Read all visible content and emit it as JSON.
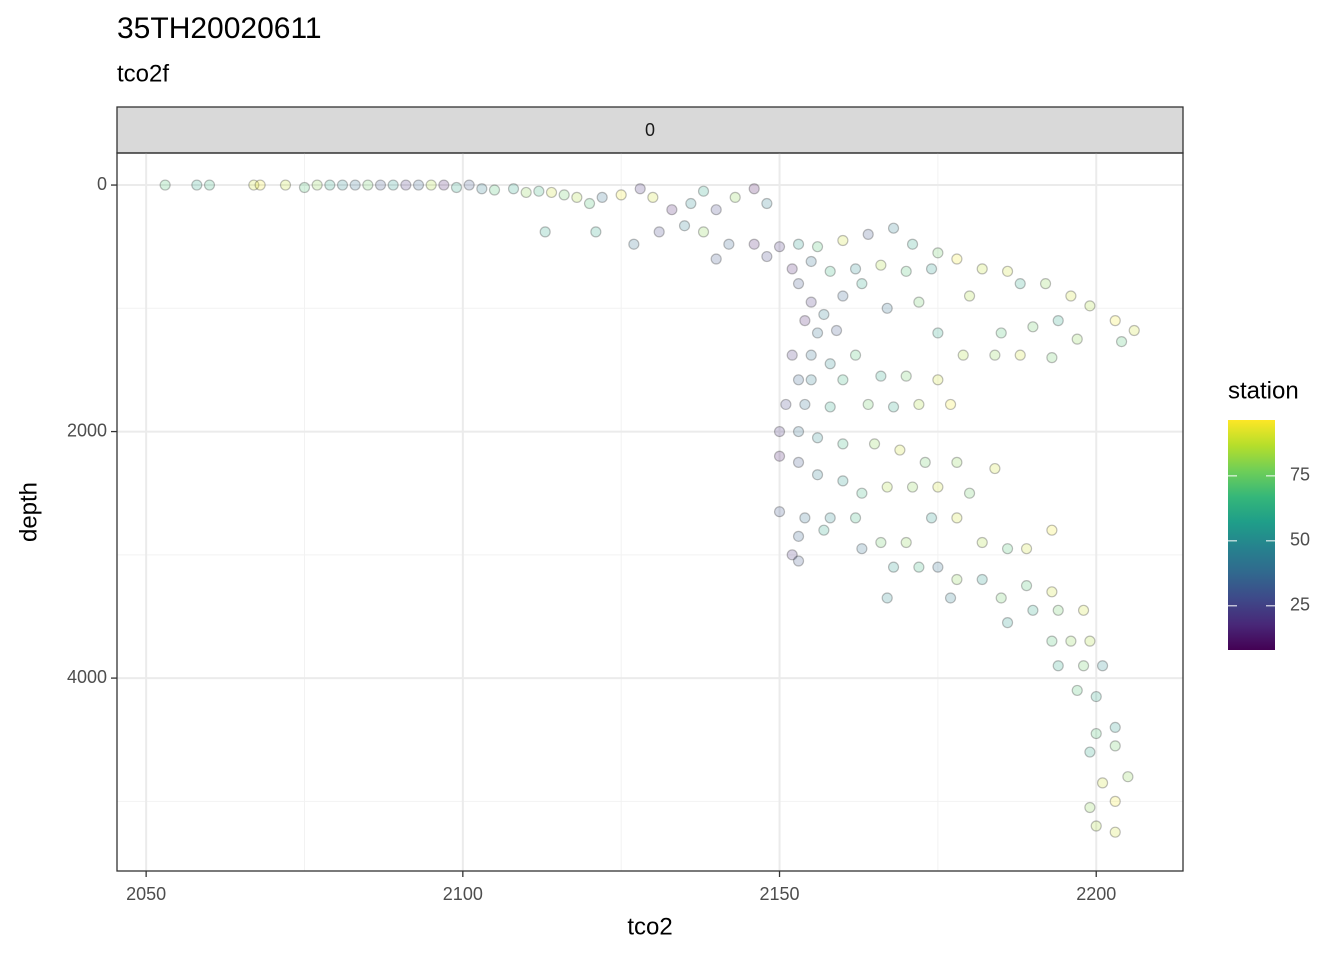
{
  "chart_data": {
    "type": "scatter",
    "title": "35TH20020611",
    "subtitle": "tco2f",
    "facet_label": "0",
    "x_label": "tco2",
    "y_label": "depth",
    "legend_title": "station",
    "y_reversed": true,
    "grid": true,
    "xlim": [
      2045.4,
      2213.7
    ],
    "ylim": [
      -260,
      5565
    ],
    "xticks": [
      2050,
      2100,
      2150,
      2200
    ],
    "yticks": [
      0,
      2000,
      4000
    ],
    "xminor": [
      2075,
      2125,
      2175
    ],
    "yminor": [
      1000,
      3000,
      5000
    ],
    "colorlim": [
      8,
      96.5
    ],
    "colorticks": [
      25,
      50,
      75
    ],
    "colorscale": [
      "#440154",
      "#482878",
      "#3e4989",
      "#31688e",
      "#26828e",
      "#1f9e89",
      "#35b779",
      "#6ece58",
      "#b5de2b",
      "#fde725"
    ],
    "x": [
      2053,
      2058,
      2060,
      2067,
      2068,
      2072,
      2075,
      2077,
      2079,
      2081,
      2083,
      2085,
      2087,
      2089,
      2091,
      2093,
      2095,
      2097,
      2099,
      2101,
      2103,
      2105,
      2108,
      2110,
      2112,
      2114,
      2116,
      2118,
      2120,
      2122,
      2125,
      2128,
      2130,
      2133,
      2136,
      2138,
      2140,
      2143,
      2146,
      2148,
      2113,
      2121,
      2127,
      2131,
      2135,
      2138,
      2142,
      2146,
      2150,
      2153,
      2156,
      2160,
      2164,
      2168,
      2171,
      2175,
      2140,
      2148,
      2152,
      2155,
      2158,
      2162,
      2166,
      2170,
      2174,
      2178,
      2182,
      2186,
      2188,
      2192,
      2196,
      2199,
      2203,
      2206,
      2204,
      2153,
      2155,
      2157,
      2160,
      2163,
      2167,
      2172,
      2175,
      2180,
      2185,
      2190,
      2194,
      2197,
      2154,
      2156,
      2159,
      2152,
      2155,
      2158,
      2162,
      2166,
      2170,
      2175,
      2179,
      2184,
      2188,
      2193,
      2153,
      2155,
      2160,
      2151,
      2154,
      2158,
      2164,
      2168,
      2172,
      2177,
      2150,
      2153,
      2156,
      2160,
      2165,
      2169,
      2173,
      2178,
      2150,
      2153,
      2156,
      2160,
      2163,
      2167,
      2171,
      2175,
      2180,
      2184,
      2150,
      2154,
      2158,
      2162,
      2166,
      2170,
      2174,
      2178,
      2182,
      2186,
      2189,
      2193,
      2153,
      2152,
      2153,
      2157,
      2163,
      2168,
      2172,
      2175,
      2178,
      2182,
      2185,
      2189,
      2193,
      2190,
      2194,
      2198,
      2186,
      2193,
      2196,
      2199,
      2194,
      2198,
      2201,
      2167,
      2177,
      2197,
      2200,
      2203,
      2200,
      2199,
      2203,
      2205,
      2201,
      2203,
      2200,
      2203,
      2199
    ],
    "values": [
      0,
      0,
      0,
      0,
      0,
      0,
      20,
      0,
      0,
      0,
      0,
      0,
      0,
      0,
      0,
      0,
      0,
      0,
      20,
      0,
      30,
      40,
      30,
      60,
      50,
      60,
      80,
      100,
      150,
      100,
      80,
      30,
      100,
      200,
      150,
      50,
      200,
      100,
      30,
      150,
      380,
      380,
      480,
      380,
      330,
      380,
      480,
      480,
      500,
      480,
      500,
      450,
      400,
      350,
      480,
      550,
      600,
      580,
      680,
      620,
      700,
      680,
      650,
      700,
      680,
      600,
      680,
      700,
      800,
      800,
      900,
      980,
      1100,
      1180,
      1270,
      800,
      950,
      1050,
      900,
      800,
      1000,
      950,
      1200,
      900,
      1200,
      1150,
      1100,
      1250,
      1100,
      1200,
      1180,
      1380,
      1380,
      1450,
      1380,
      1550,
      1550,
      1580,
      1380,
      1380,
      1380,
      1400,
      1580,
      1580,
      1580,
      1780,
      1780,
      1800,
      1780,
      1800,
      1780,
      1780,
      2000,
      2000,
      2050,
      2100,
      2100,
      2150,
      2250,
      2250,
      2200,
      2250,
      2350,
      2400,
      2500,
      2450,
      2450,
      2450,
      2500,
      2300,
      2650,
      2700,
      2700,
      2700,
      2900,
      2900,
      2700,
      2700,
      2900,
      2950,
      2950,
      2800,
      2850,
      3000,
      3050,
      2800,
      2950,
      3100,
      3100,
      3100,
      3200,
      3200,
      3350,
      3250,
      3300,
      3450,
      3450,
      3450,
      3550,
      3700,
      3700,
      3700,
      3900,
      3900,
      3900,
      3350,
      3350,
      4100,
      4150,
      4400,
      4450,
      4600,
      4550,
      4800,
      4850,
      5000,
      5200,
      5250,
      5050
    ],
    "station": [
      70,
      60,
      65,
      90,
      95,
      88,
      70,
      80,
      60,
      50,
      40,
      75,
      30,
      55,
      20,
      35,
      85,
      15,
      60,
      30,
      45,
      70,
      60,
      80,
      65,
      90,
      75,
      85,
      70,
      40,
      95,
      20,
      90,
      15,
      50,
      60,
      25,
      80,
      10,
      45,
      60,
      60,
      40,
      25,
      45,
      80,
      35,
      15,
      20,
      55,
      70,
      90,
      30,
      45,
      60,
      75,
      30,
      25,
      15,
      40,
      65,
      50,
      85,
      70,
      55,
      95,
      88,
      90,
      60,
      80,
      90,
      85,
      95,
      90,
      70,
      30,
      20,
      45,
      35,
      60,
      40,
      75,
      60,
      85,
      70,
      75,
      60,
      80,
      15,
      40,
      30,
      20,
      40,
      50,
      70,
      60,
      75,
      90,
      85,
      80,
      90,
      75,
      35,
      45,
      65,
      25,
      40,
      60,
      75,
      60,
      85,
      95,
      20,
      40,
      50,
      65,
      80,
      90,
      75,
      80,
      15,
      30,
      45,
      55,
      65,
      85,
      80,
      90,
      75,
      90,
      30,
      40,
      50,
      65,
      75,
      80,
      55,
      90,
      85,
      70,
      90,
      95,
      35,
      20,
      30,
      60,
      40,
      55,
      65,
      40,
      80,
      55,
      75,
      70,
      90,
      60,
      75,
      90,
      55,
      70,
      80,
      85,
      60,
      75,
      50,
      50,
      45,
      70,
      60,
      55,
      70,
      60,
      75,
      80,
      90,
      95,
      85,
      90,
      80
    ]
  }
}
